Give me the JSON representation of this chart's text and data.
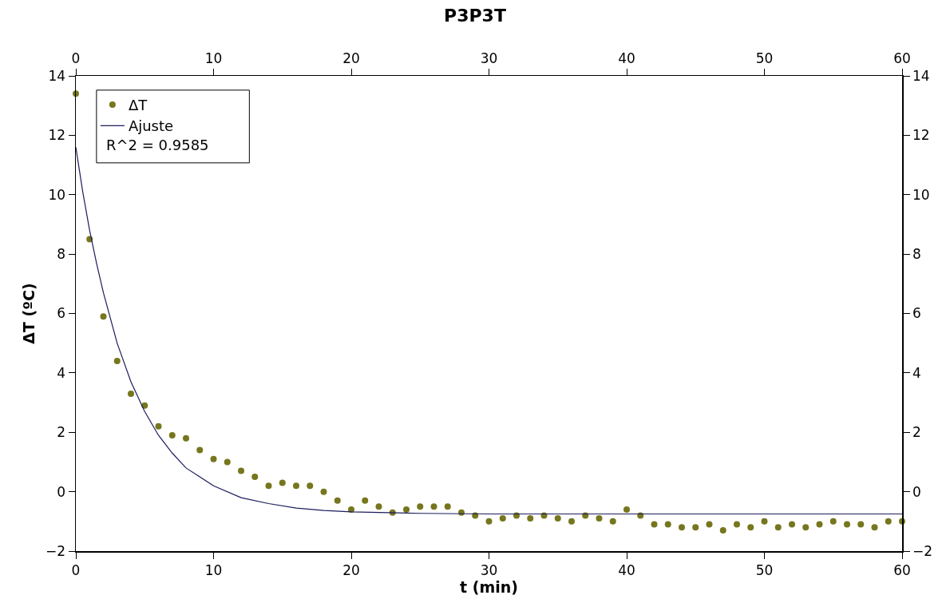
{
  "chart_data": {
    "type": "scatter",
    "title": "P3P3T",
    "xlabel": "t (min)",
    "ylabel": "ΔT (ºC)",
    "xlim": [
      0,
      60
    ],
    "xticks": [
      0,
      10,
      20,
      30,
      40,
      50,
      60
    ],
    "x2lim": [
      0,
      60
    ],
    "x2ticks": [
      0,
      10,
      20,
      30,
      40,
      50,
      60
    ],
    "ylim": [
      -2,
      14
    ],
    "yticks": [
      -2,
      0,
      2,
      4,
      6,
      8,
      10,
      12,
      14
    ],
    "y2lim": [
      -2,
      14
    ],
    "y2ticks": [
      -2,
      0,
      2,
      4,
      6,
      8,
      10,
      12,
      14
    ],
    "grid": false,
    "legend": "top left",
    "marker": "circle",
    "annotations": [
      "R^2 = 0.9585"
    ],
    "series": [
      {
        "name": "ΔT",
        "color": "#76761e",
        "x": [
          0,
          1,
          2,
          3,
          4,
          5,
          6,
          7,
          8,
          9,
          10,
          11,
          12,
          13,
          14,
          15,
          16,
          17,
          18,
          19,
          20,
          21,
          22,
          23,
          24,
          25,
          26,
          27,
          28,
          29,
          30,
          31,
          32,
          33,
          34,
          35,
          36,
          37,
          38,
          39,
          40,
          41,
          42,
          43,
          44,
          45,
          46,
          47,
          48,
          49,
          50,
          51,
          52,
          53,
          54,
          55,
          56,
          57,
          58,
          59,
          60
        ],
        "values": [
          13.4,
          8.5,
          5.9,
          4.4,
          3.3,
          2.9,
          2.2,
          1.9,
          1.8,
          1.4,
          1.1,
          1.0,
          0.7,
          0.5,
          0.2,
          0.3,
          0.2,
          0.2,
          0.0,
          -0.3,
          -0.6,
          -0.3,
          -0.5,
          -0.7,
          -0.6,
          -0.5,
          -0.5,
          -0.5,
          -0.7,
          -0.8,
          -1.0,
          -0.9,
          -0.8,
          -0.9,
          -0.8,
          -0.9,
          -1.0,
          -0.8,
          -0.9,
          -1.0,
          -0.6,
          -0.8,
          -1.1,
          -1.1,
          -1.2,
          -1.2,
          -1.1,
          -1.3,
          -1.1,
          -1.2,
          -1.0,
          -1.2,
          -1.1,
          -1.2,
          -1.1,
          -1.0,
          -1.1,
          -1.1,
          -1.2,
          -1.0,
          -1.0
        ]
      },
      {
        "name": "Ajuste",
        "type": "line",
        "color": "#1c1c5c",
        "line_style": "solid",
        "marker": "none",
        "x": [
          0,
          0.5,
          1,
          1.5,
          2,
          3,
          4,
          5,
          6,
          7,
          8,
          10,
          12,
          14,
          16,
          18,
          20,
          25,
          30,
          60
        ],
        "values": [
          11.6,
          10.1,
          8.8,
          7.7,
          6.7,
          5.0,
          3.7,
          2.7,
          1.9,
          1.3,
          0.8,
          0.2,
          -0.2,
          -0.4,
          -0.55,
          -0.63,
          -0.68,
          -0.73,
          -0.75,
          -0.75
        ]
      }
    ]
  }
}
